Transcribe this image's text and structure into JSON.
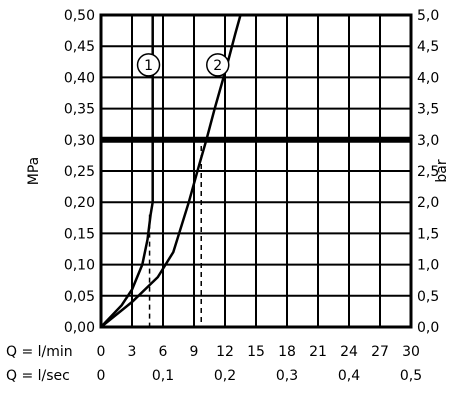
{
  "chart_data": {
    "type": "line",
    "ylabel_left": "MPa",
    "ylabel_right": "bar",
    "xlabel_lpm": "Q = l/min",
    "xlabel_lps": "Q = l/sec",
    "x_ticks_lpm": [
      "0",
      "3",
      "6",
      "9",
      "12",
      "15",
      "18",
      "21",
      "24",
      "27",
      "30"
    ],
    "x_ticks_lps": [
      "0",
      "0,1",
      "0,2",
      "0,3",
      "0,4",
      "0,5"
    ],
    "y_ticks_mpa": [
      "0,00",
      "0,05",
      "0,10",
      "0,15",
      "0,20",
      "0,25",
      "0,30",
      "0,35",
      "0,40",
      "0,45",
      "0,50"
    ],
    "y_ticks_bar": [
      "0,0",
      "0,5",
      "1,0",
      "1,5",
      "2,0",
      "2,5",
      "3,0",
      "3,5",
      "4,0",
      "4,5",
      "5,0"
    ],
    "xlim": [
      0,
      30
    ],
    "ylim": [
      0,
      0.5
    ],
    "grid": true,
    "threshold_mpa": 0.3,
    "series": [
      {
        "name": "1",
        "points": [
          [
            0,
            0
          ],
          [
            2,
            0.035
          ],
          [
            3,
            0.06
          ],
          [
            4,
            0.1
          ],
          [
            4.5,
            0.14
          ],
          [
            4.8,
            0.18
          ],
          [
            5,
            0.2
          ],
          [
            5,
            0.25
          ],
          [
            5,
            0.3
          ],
          [
            5,
            0.35
          ],
          [
            5,
            0.4
          ],
          [
            5,
            0.45
          ],
          [
            5,
            0.5
          ]
        ],
        "label_at": [
          4.6,
          0.42
        ],
        "marker_x": 4.7,
        "marker_y": 0.18
      },
      {
        "name": "2",
        "points": [
          [
            0,
            0
          ],
          [
            3,
            0.04
          ],
          [
            5.5,
            0.08
          ],
          [
            7,
            0.12
          ],
          [
            8.5,
            0.2
          ],
          [
            9.5,
            0.26
          ],
          [
            10.2,
            0.3
          ],
          [
            11,
            0.35
          ],
          [
            12.2,
            0.42
          ],
          [
            13,
            0.47
          ],
          [
            13.5,
            0.5
          ]
        ],
        "label_at": [
          11.3,
          0.42
        ],
        "marker_x": 9.7,
        "marker_y": 0.29
      }
    ]
  }
}
